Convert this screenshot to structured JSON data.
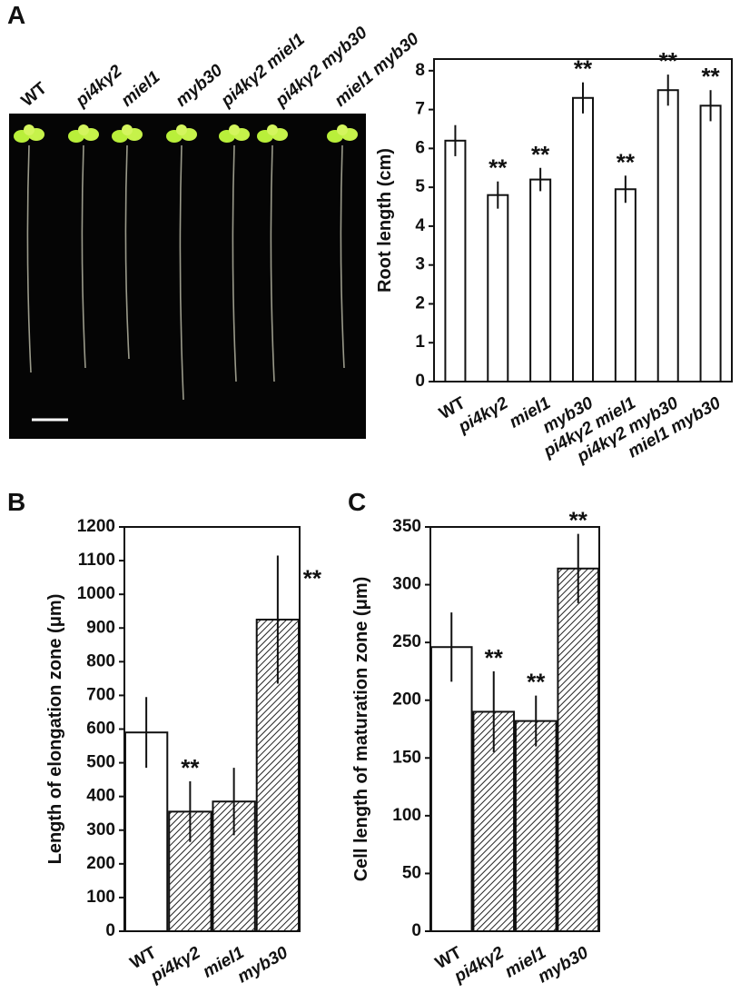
{
  "panel_labels": [
    "A",
    "B",
    "C"
  ],
  "photo_labels": [
    "WT",
    "pi4kγ2",
    "miel1",
    "myb30",
    "pi4kγ2 miel1",
    "pi4kγ2 myb30",
    "miel1 myb30"
  ],
  "chart_data": [
    {
      "type": "bar",
      "ylabel": "Root length (cm)",
      "categories": [
        "WT",
        "pi4kγ2",
        "miel1",
        "myb30",
        "pi4kγ2 miel1",
        "pi4kγ2 myb30",
        "miel1 myb30"
      ],
      "values": [
        6.2,
        4.8,
        5.2,
        7.3,
        4.95,
        7.5,
        7.1
      ],
      "errors": [
        0.4,
        0.35,
        0.3,
        0.4,
        0.35,
        0.4,
        0.4
      ],
      "significance": [
        null,
        "**",
        "**",
        "**",
        "**",
        "**",
        "**"
      ],
      "hatched": [
        false,
        false,
        false,
        false,
        false,
        false,
        false
      ],
      "ylim": [
        0,
        8.3
      ],
      "yticks": [
        0,
        1,
        2,
        3,
        4,
        5,
        6,
        7,
        8
      ]
    },
    {
      "type": "bar",
      "ylabel": "Length of elongation zone (μm)",
      "categories": [
        "WT",
        "pi4kγ2",
        "miel1",
        "myb30"
      ],
      "values": [
        590,
        355,
        385,
        925
      ],
      "errors": [
        105,
        90,
        100,
        190
      ],
      "significance": [
        null,
        "**",
        null,
        "**"
      ],
      "hatched": [
        false,
        true,
        true,
        true
      ],
      "ylim": [
        0,
        1200
      ],
      "yticks": [
        0,
        100,
        200,
        300,
        400,
        500,
        600,
        700,
        800,
        900,
        1000,
        1100,
        1200
      ]
    },
    {
      "type": "bar",
      "ylabel": "Cell length of maturation zone (μm)",
      "categories": [
        "WT",
        "pi4kγ2",
        "miel1",
        "myb30"
      ],
      "values": [
        246,
        190,
        182,
        314
      ],
      "errors": [
        30,
        35,
        22,
        30
      ],
      "significance": [
        null,
        "**",
        "**",
        "**"
      ],
      "hatched": [
        false,
        true,
        true,
        true
      ],
      "ylim": [
        0,
        350
      ],
      "yticks": [
        0,
        50,
        100,
        150,
        200,
        250,
        300,
        350
      ]
    }
  ]
}
